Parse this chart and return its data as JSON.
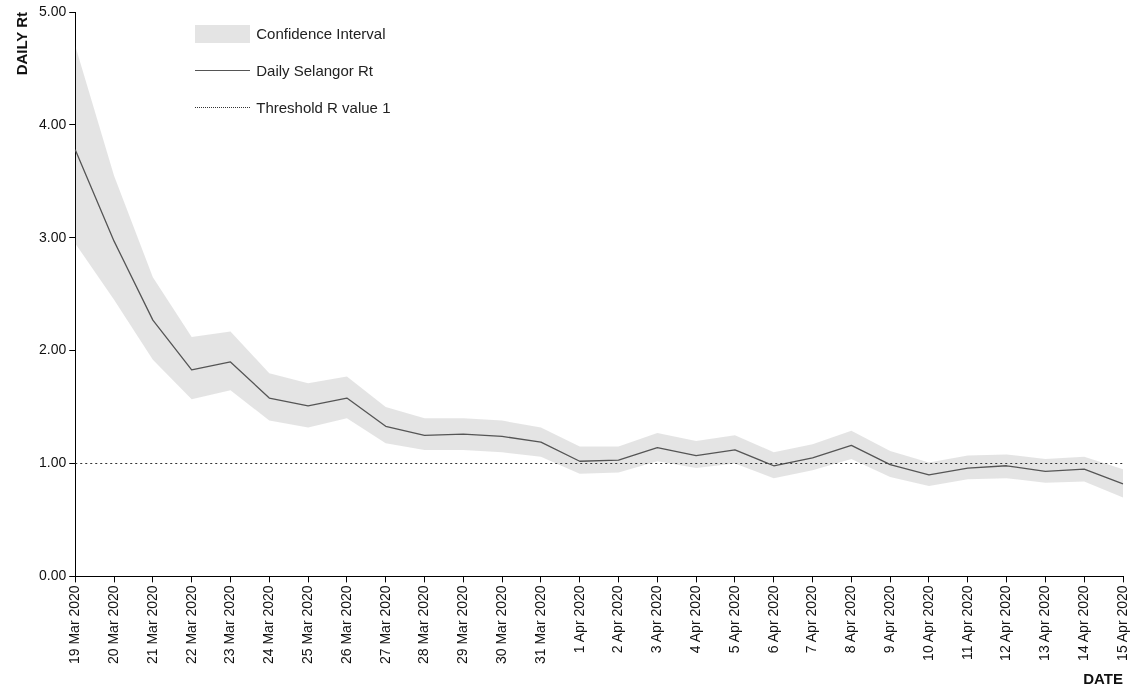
{
  "chart_data": {
    "type": "line",
    "xlabel": "DATE",
    "ylabel": "DAILY Rt",
    "annotations": [
      "Confidence Interval"
    ],
    "categories": [
      "19 Mar 2020",
      "20 Mar 2020",
      "21 Mar 2020",
      "22 Mar 2020",
      "23 Mar 2020",
      "24 Mar 2020",
      "25 Mar 2020",
      "26 Mar 2020",
      "27 Mar 2020",
      "28 Mar 2020",
      "29 Mar 2020",
      "30 Mar 2020",
      "31 Mar 2020",
      "1 Apr 2020",
      "2 Apr 2020",
      "3 Apr 2020",
      "4 Apr 2020",
      "5 Apr 2020",
      "6 Apr 2020",
      "7 Apr 2020",
      "8 Apr 2020",
      "9 Apr 2020",
      "10 Apr 2020",
      "11 Apr 2020",
      "12 Apr 2020",
      "13 Apr 2020",
      "14 Apr 2020",
      "15 Apr 2020"
    ],
    "series": [
      {
        "name": "Daily Selangor Rt",
        "type": "line",
        "color": "#555555",
        "values": [
          3.78,
          2.97,
          2.27,
          1.83,
          1.9,
          1.58,
          1.51,
          1.58,
          1.33,
          1.25,
          1.26,
          1.24,
          1.19,
          1.02,
          1.03,
          1.14,
          1.07,
          1.12,
          0.98,
          1.05,
          1.16,
          0.99,
          0.9,
          0.96,
          0.98,
          0.93,
          0.95,
          0.82
        ],
        "upper": [
          4.7,
          3.55,
          2.65,
          2.12,
          2.17,
          1.8,
          1.71,
          1.77,
          1.5,
          1.4,
          1.4,
          1.38,
          1.32,
          1.15,
          1.15,
          1.27,
          1.2,
          1.25,
          1.1,
          1.17,
          1.29,
          1.11,
          1.01,
          1.07,
          1.08,
          1.04,
          1.06,
          0.95
        ],
        "lower": [
          2.95,
          2.45,
          1.92,
          1.57,
          1.65,
          1.38,
          1.32,
          1.4,
          1.18,
          1.12,
          1.12,
          1.1,
          1.06,
          0.91,
          0.92,
          1.02,
          0.96,
          1.0,
          0.87,
          0.94,
          1.04,
          0.88,
          0.8,
          0.86,
          0.87,
          0.83,
          0.84,
          0.7
        ]
      }
    ],
    "ref_lines": [
      {
        "axis": "y",
        "value": 1,
        "label": "Threshold R value 1",
        "color": "#333333",
        "line_style": "dotted"
      }
    ],
    "ylim": [
      0,
      5
    ],
    "yticks": [
      {
        "value": 0,
        "label": "0.00"
      },
      {
        "value": 1,
        "label": "1.00"
      },
      {
        "value": 2,
        "label": "2.00"
      },
      {
        "value": 3,
        "label": "3.00"
      },
      {
        "value": 4,
        "label": "4.00"
      },
      {
        "value": 5,
        "label": "5.00"
      }
    ],
    "grid": false,
    "legend": "top left",
    "marker": "none"
  }
}
